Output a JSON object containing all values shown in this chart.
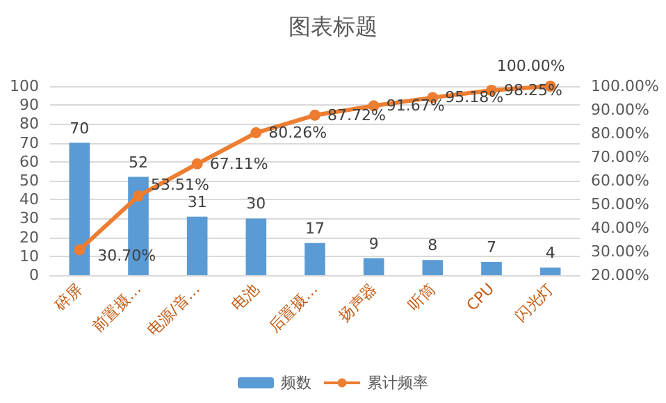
{
  "chart_data": {
    "type": "bar",
    "title": "图表标题",
    "categories": [
      "碎屏",
      "前置摄…",
      "电源/音…",
      "电池",
      "后置摄…",
      "扬声器",
      "听筒",
      "CPU",
      "闪光灯"
    ],
    "series": [
      {
        "name": "频数",
        "color": "#5b9bd5",
        "values": [
          70,
          52,
          31,
          30,
          17,
          9,
          8,
          7,
          4
        ],
        "value_labels": [
          "70",
          "52",
          "31",
          "30",
          "17",
          "9",
          "8",
          "7",
          "4"
        ]
      },
      {
        "name": "累计频率",
        "type": "line",
        "axis": "y2",
        "color": "#ed7d31",
        "marker": "circle",
        "values": [
          30.7,
          53.51,
          67.11,
          80.26,
          87.72,
          91.67,
          95.18,
          98.25,
          100.0
        ],
        "value_labels": [
          "30.70%",
          "53.51%",
          "67.11%",
          "80.26%",
          "87.72%",
          "91.67%",
          "95.18%",
          "98.25%",
          "100.00%"
        ]
      }
    ],
    "ylim": [
      0,
      100
    ],
    "yticks": [
      0,
      10,
      20,
      30,
      40,
      50,
      60,
      70,
      80,
      90,
      100
    ],
    "y2lim": [
      20,
      100
    ],
    "y2ticks": [
      {
        "value": 20,
        "label": "20.00%"
      },
      {
        "value": 30,
        "label": "30.00%"
      },
      {
        "value": 40,
        "label": "40.00%"
      },
      {
        "value": 50,
        "label": "50.00%"
      },
      {
        "value": 60,
        "label": "60.00%"
      },
      {
        "value": 70,
        "label": "70.00%"
      },
      {
        "value": 80,
        "label": "80.00%"
      },
      {
        "value": 90,
        "label": "90.00%"
      },
      {
        "value": 100,
        "label": "100.00%"
      }
    ],
    "grid": "y",
    "legend": "bottom"
  }
}
